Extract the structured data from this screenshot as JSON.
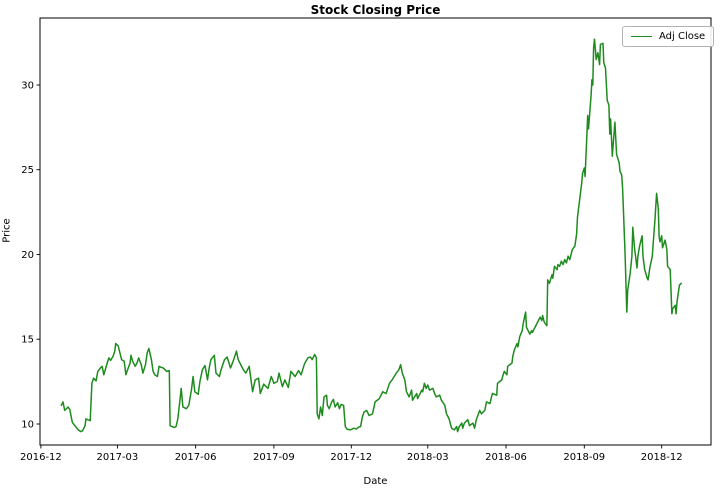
{
  "chart_data": {
    "type": "line",
    "title": "Stock Closing Price",
    "xlabel": "Date",
    "ylabel": "Price",
    "grid": false,
    "legend": {
      "position": "upper right",
      "entries": [
        "Adj Close"
      ]
    },
    "line_color": "#1e8b1e",
    "axis_color": "#000000",
    "x_base_date": "2016-12-01",
    "xlim_days": [
      -1,
      788
    ],
    "ylim": [
      8.76,
      33.95
    ],
    "y_ticks": [
      10,
      15,
      20,
      25,
      30
    ],
    "x_ticks": [
      {
        "label": "2016-12",
        "day": 0
      },
      {
        "label": "2017-03",
        "day": 90
      },
      {
        "label": "2017-06",
        "day": 182
      },
      {
        "label": "2017-09",
        "day": 274
      },
      {
        "label": "2017-12",
        "day": 365
      },
      {
        "label": "2018-03",
        "day": 455
      },
      {
        "label": "2018-06",
        "day": 547
      },
      {
        "label": "2018-09",
        "day": 639
      },
      {
        "label": "2018-12",
        "day": 730
      }
    ],
    "series": [
      {
        "name": "Adj Close",
        "day_offsets": [
          24,
          26,
          28,
          32,
          34,
          37,
          40,
          44,
          47,
          49,
          52,
          53,
          55,
          58,
          60,
          62,
          65,
          67,
          70,
          72,
          74,
          78,
          80,
          82,
          85,
          87,
          88,
          91,
          93,
          95,
          98,
          100,
          102,
          105,
          106,
          108,
          111,
          113,
          115,
          118,
          120,
          123,
          125,
          127,
          130,
          132,
          134,
          137,
          139,
          141,
          144,
          146,
          148,
          151,
          152,
          154,
          157,
          159,
          161,
          164,
          165,
          167,
          171,
          174,
          177,
          179,
          181,
          185,
          187,
          190,
          193,
          196,
          198,
          200,
          204,
          206,
          210,
          212,
          216,
          219,
          223,
          226,
          230,
          232,
          234,
          238,
          241,
          245,
          249,
          252,
          256,
          258,
          262,
          265,
          267,
          271,
          274,
          278,
          280,
          284,
          287,
          291,
          294,
          299,
          303,
          306,
          310,
          314,
          317,
          319,
          322,
          324,
          325,
          327,
          329,
          331,
          333,
          336,
          337,
          339,
          342,
          344,
          346,
          349,
          351,
          353,
          356,
          358,
          360,
          364,
          368,
          371,
          373,
          376,
          378,
          380,
          383,
          386,
          390,
          393,
          398,
          402,
          406,
          410,
          413,
          418,
          421,
          423,
          425,
          428,
          430,
          433,
          436,
          437,
          442,
          443,
          448,
          449,
          451,
          453,
          455,
          457,
          461,
          463,
          465,
          469,
          471,
          475,
          477,
          480,
          483,
          486,
          489,
          490,
          492,
          495,
          496,
          498,
          502,
          504,
          508,
          510,
          512,
          516,
          518,
          522,
          524,
          528,
          531,
          536,
          537,
          542,
          543,
          545,
          548,
          549,
          554,
          555,
          557,
          560,
          561,
          563,
          566,
          567,
          570,
          571,
          575,
          577,
          578,
          583,
          587,
          589,
          590,
          592,
          595,
          596,
          598,
          601,
          602,
          604,
          607,
          608,
          610,
          612,
          614,
          616,
          618,
          620,
          622,
          624,
          625,
          628,
          630,
          631,
          634,
          636,
          637,
          639,
          640,
          643,
          644,
          647,
          648,
          649,
          650,
          651,
          653,
          655,
          657,
          658,
          661,
          662,
          664,
          666,
          668,
          669,
          670,
          672,
          675,
          677,
          680,
          681,
          683,
          684,
          687,
          689,
          690,
          693,
          695,
          696,
          698,
          701,
          702,
          704,
          707,
          708,
          710,
          713,
          714,
          716,
          719,
          720,
          722,
          724,
          726,
          727,
          728,
          730,
          731,
          734,
          736,
          737,
          740,
          742,
          743,
          746,
          747,
          748,
          750,
          751,
          753
        ],
        "values": [
          11.1,
          11.3,
          10.8,
          11.0,
          10.85,
          10.1,
          9.9,
          9.65,
          9.55,
          9.6,
          9.9,
          10.3,
          10.25,
          10.2,
          12.4,
          12.7,
          12.55,
          13.1,
          13.3,
          13.4,
          12.9,
          13.6,
          13.9,
          13.75,
          14.0,
          14.3,
          14.75,
          14.6,
          14.2,
          13.8,
          13.7,
          12.9,
          13.2,
          13.6,
          14.05,
          13.7,
          13.4,
          13.6,
          13.9,
          13.5,
          13.0,
          13.5,
          14.2,
          14.45,
          13.8,
          13.1,
          12.9,
          12.8,
          13.4,
          13.35,
          13.3,
          13.2,
          13.1,
          13.15,
          9.9,
          9.85,
          9.8,
          9.85,
          10.3,
          11.6,
          12.1,
          11.0,
          10.9,
          11.1,
          12.0,
          12.8,
          11.9,
          11.75,
          12.5,
          13.2,
          13.45,
          12.6,
          13.3,
          13.8,
          14.05,
          13.0,
          12.8,
          13.2,
          13.8,
          13.95,
          13.3,
          13.7,
          14.3,
          13.8,
          13.6,
          13.2,
          13.0,
          13.4,
          11.9,
          12.6,
          12.7,
          11.8,
          12.35,
          12.2,
          12.1,
          12.8,
          12.4,
          12.5,
          13.0,
          12.2,
          12.6,
          12.15,
          13.1,
          12.8,
          13.15,
          12.9,
          13.55,
          13.9,
          13.95,
          13.8,
          14.1,
          13.9,
          10.6,
          10.3,
          11.0,
          10.5,
          11.6,
          11.7,
          11.1,
          10.9,
          11.3,
          11.45,
          11.0,
          11.25,
          10.9,
          11.15,
          11.1,
          9.85,
          9.7,
          9.65,
          9.75,
          9.7,
          9.8,
          9.85,
          10.4,
          10.7,
          10.8,
          10.5,
          10.6,
          11.3,
          11.5,
          11.9,
          11.8,
          12.4,
          12.6,
          13.0,
          13.2,
          13.5,
          13.0,
          12.6,
          11.9,
          11.6,
          12.0,
          11.4,
          11.8,
          11.5,
          12.0,
          11.9,
          12.4,
          12.1,
          12.3,
          12.0,
          12.1,
          11.8,
          11.6,
          11.7,
          11.4,
          11.1,
          10.6,
          10.3,
          9.75,
          9.65,
          9.85,
          9.55,
          9.85,
          10.05,
          9.75,
          10.05,
          10.25,
          9.9,
          10.05,
          9.75,
          10.25,
          10.8,
          10.6,
          10.8,
          11.3,
          11.2,
          11.8,
          11.7,
          12.4,
          12.6,
          12.8,
          13.1,
          12.9,
          13.4,
          13.6,
          14.0,
          14.4,
          14.75,
          14.55,
          15.15,
          15.5,
          15.9,
          16.6,
          15.7,
          15.3,
          15.5,
          15.4,
          15.9,
          16.3,
          16.1,
          16.4,
          16.0,
          15.8,
          18.5,
          18.3,
          18.8,
          18.6,
          19.3,
          19.1,
          19.4,
          19.3,
          19.6,
          19.4,
          19.7,
          19.5,
          19.9,
          19.7,
          20.1,
          20.3,
          20.5,
          21.2,
          22.2,
          23.4,
          24.2,
          24.8,
          25.1,
          24.6,
          28.2,
          27.4,
          29.4,
          30.3,
          30.0,
          32.2,
          32.7,
          31.5,
          31.9,
          31.2,
          32.4,
          32.45,
          31.3,
          31.0,
          29.1,
          28.8,
          27.1,
          28.0,
          25.8,
          27.8,
          25.9,
          25.4,
          24.9,
          24.7,
          23.9,
          20.0,
          16.6,
          17.9,
          18.9,
          19.9,
          21.6,
          20.4,
          19.2,
          19.9,
          20.5,
          21.1,
          19.9,
          19.1,
          18.6,
          18.5,
          19.2,
          19.9,
          20.65,
          22.0,
          23.6,
          22.7,
          21.05,
          20.75,
          21.1,
          20.4,
          20.85,
          20.3,
          19.3,
          19.1,
          16.5,
          16.8,
          17.0,
          16.5,
          17.2,
          17.9,
          18.2,
          18.3
        ]
      }
    ]
  }
}
